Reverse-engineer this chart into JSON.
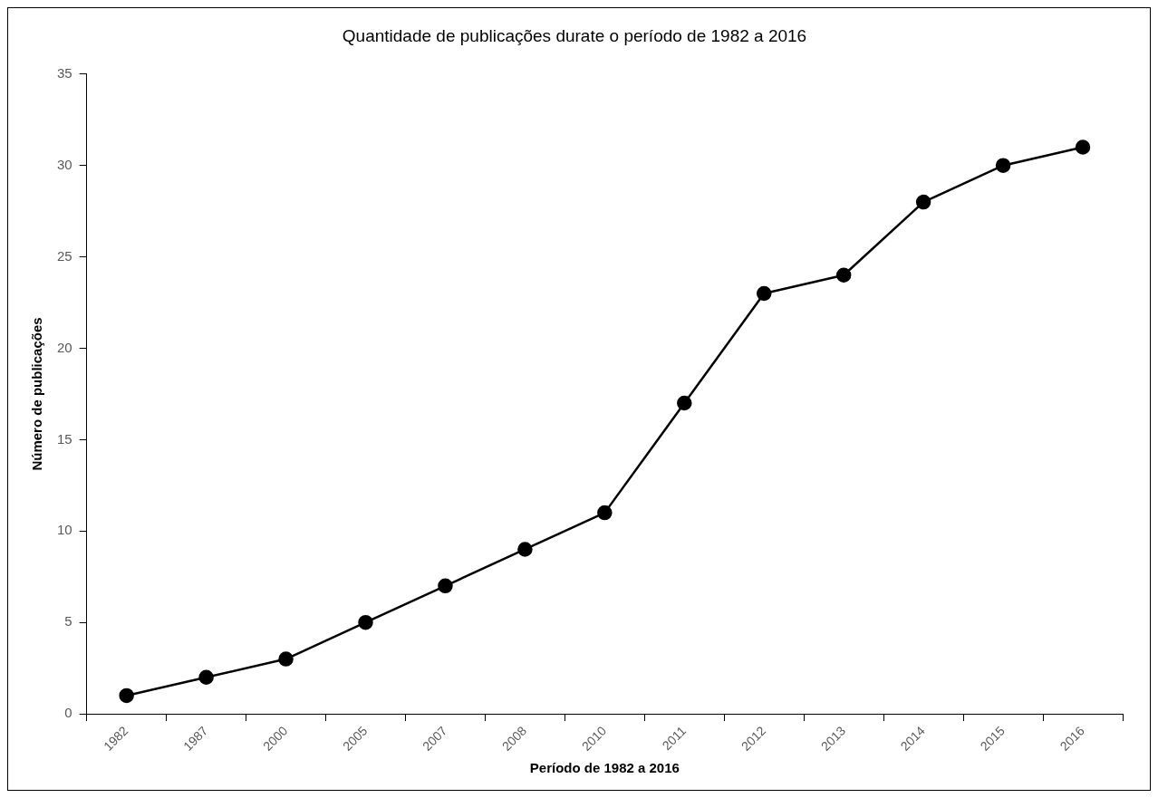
{
  "chart_data": {
    "type": "line",
    "title": "Quantidade de publicações durate o período de 1982 a 2016",
    "xlabel": "Período de 1982 a 2016",
    "ylabel": "Número de publicações",
    "categories": [
      "1982",
      "1987",
      "2000",
      "2005",
      "2007",
      "2008",
      "2010",
      "2011",
      "2012",
      "2013",
      "2014",
      "2015",
      "2016"
    ],
    "series": [
      {
        "color": "#000000",
        "values": [
          1,
          2,
          3,
          5,
          7,
          9,
          11,
          17,
          23,
          24,
          28,
          30,
          31
        ]
      }
    ],
    "ylim": [
      0,
      35
    ],
    "yticks": [
      0,
      5,
      10,
      15,
      20,
      25,
      30,
      35
    ],
    "grid": false,
    "legend": false,
    "marker": "circle",
    "line_style": "solid"
  }
}
